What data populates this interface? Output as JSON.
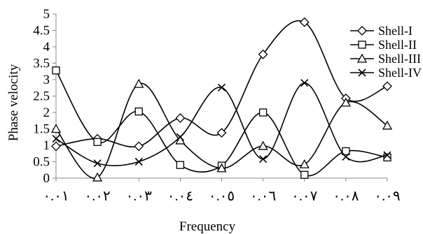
{
  "chart_data": {
    "type": "line",
    "title": "",
    "xlabel": "Frequency",
    "ylabel": "Phase velocity",
    "categories": [
      "٠.٠١",
      "٠.٠٢",
      "٠.٠٣",
      "٠.٠٤",
      "٠.٠٥",
      "٠.٠٦",
      "٠.٠٧",
      "٠.٠٨",
      "٠.٠٩"
    ],
    "ylim": [
      0,
      5
    ],
    "yticks": [
      "0",
      "0.5",
      "1",
      "1.5",
      "2",
      "2.5",
      "3",
      "3.5",
      "4",
      "4.5",
      "5"
    ],
    "grid": false,
    "smooth": true,
    "legend_position": "top-right",
    "series": [
      {
        "name": "Shell-I",
        "marker": "diamond",
        "values": [
          0.97,
          1.2,
          0.97,
          1.83,
          1.38,
          3.77,
          4.75,
          2.43,
          2.8
        ]
      },
      {
        "name": "Shell-II",
        "marker": "square",
        "values": [
          3.28,
          1.1,
          2.03,
          0.4,
          0.38,
          2.0,
          0.1,
          0.82,
          0.63
        ]
      },
      {
        "name": "Shell-III",
        "marker": "triangle",
        "values": [
          1.5,
          0.02,
          2.87,
          1.15,
          0.3,
          0.98,
          0.42,
          2.3,
          1.6
        ]
      },
      {
        "name": "Shell-IV",
        "marker": "x",
        "values": [
          1.2,
          0.45,
          0.5,
          1.25,
          2.76,
          0.58,
          2.9,
          0.65,
          0.7
        ]
      }
    ]
  }
}
